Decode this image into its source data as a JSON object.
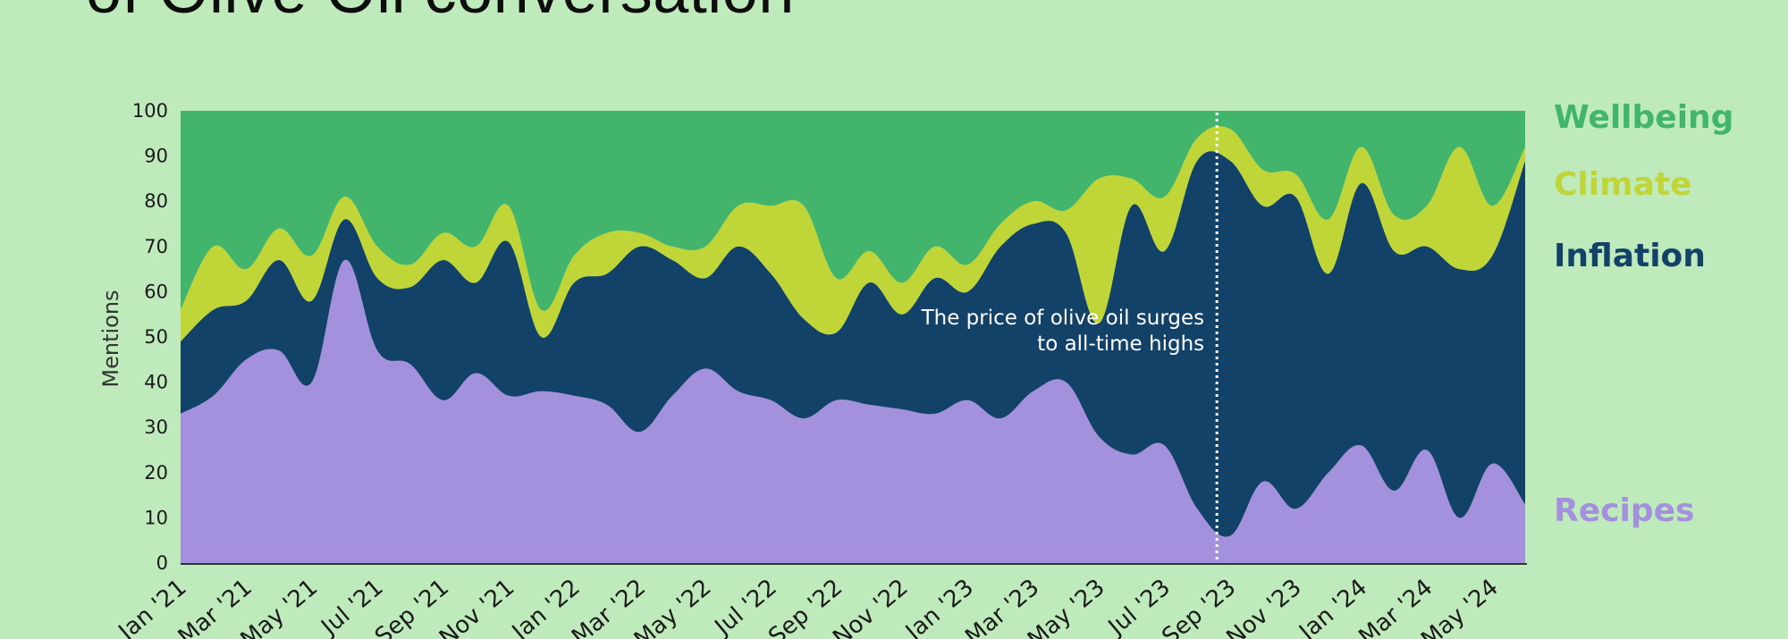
{
  "page": {
    "title": "of Olive Oil conversation"
  },
  "chart_data": {
    "type": "area",
    "stacked": true,
    "normalized_to": 100,
    "ylabel": "Mentions",
    "ylim": [
      0,
      100
    ],
    "yticks": [
      0,
      10,
      20,
      30,
      40,
      50,
      60,
      70,
      80,
      90,
      100
    ],
    "xtick_labels": [
      "Jan '21",
      "Mar '21",
      "May '21",
      "Jul '21",
      "Sep '21",
      "Nov '21",
      "Jan '22",
      "Mar '22",
      "May '22",
      "Jul '22",
      "Sep '22",
      "Nov '22",
      "Jan '23",
      "Mar '23",
      "May '23",
      "Jul '23",
      "Sep '23",
      "Nov '23",
      "Jan '24",
      "Mar '24",
      "May '24"
    ],
    "x": [
      "Jan '21",
      "Feb '21",
      "Mar '21",
      "Apr '21",
      "May '21",
      "Jun '21",
      "Jul '21",
      "Aug '21",
      "Sep '21",
      "Oct '21",
      "Nov '21",
      "Dec '21",
      "Jan '22",
      "Feb '22",
      "Mar '22",
      "Apr '22",
      "May '22",
      "Jun '22",
      "Jul '22",
      "Aug '22",
      "Sep '22",
      "Oct '22",
      "Nov '22",
      "Dec '22",
      "Jan '23",
      "Feb '23",
      "Mar '23",
      "Apr '23",
      "May '23",
      "Jun '23",
      "Jul '23",
      "Aug '23",
      "Sep '23",
      "Oct '23",
      "Nov '23",
      "Dec '23",
      "Jan '24",
      "Feb '24",
      "Mar '24",
      "Apr '24",
      "May '24",
      "Jun '24"
    ],
    "series": [
      {
        "name": "Recipes",
        "color": "#a391de",
        "values": [
          33,
          37,
          45,
          47,
          40,
          67,
          47,
          44,
          36,
          42,
          37,
          38,
          37,
          35,
          29,
          37,
          43,
          38,
          36,
          32,
          36,
          35,
          34,
          33,
          36,
          32,
          38,
          40,
          28,
          24,
          26,
          12,
          6,
          18,
          12,
          20,
          26,
          16,
          25,
          10,
          22,
          13
        ]
      },
      {
        "name": "Inflation",
        "color": "#134268",
        "values": [
          16,
          19,
          13,
          20,
          18,
          9,
          16,
          17,
          31,
          20,
          34,
          12,
          25,
          29,
          41,
          30,
          20,
          32,
          28,
          22,
          15,
          27,
          21,
          30,
          24,
          38,
          37,
          33,
          25,
          55,
          43,
          77,
          83,
          61,
          69,
          44,
          58,
          53,
          45,
          55,
          46,
          76
        ]
      },
      {
        "name": "Climate",
        "color": "#c0d638",
        "values": [
          7,
          14,
          7,
          7,
          10,
          5,
          7,
          5,
          6,
          8,
          8,
          6,
          6,
          9,
          3,
          3,
          7,
          9,
          15,
          25,
          12,
          7,
          7,
          7,
          6,
          5,
          5,
          5,
          32,
          6,
          12,
          5,
          7,
          8,
          5,
          12,
          8,
          8,
          9,
          27,
          11,
          3
        ]
      },
      {
        "name": "Wellbeing",
        "color": "#42b46c",
        "values": [
          44,
          30,
          35,
          26,
          32,
          19,
          30,
          34,
          27,
          30,
          21,
          44,
          32,
          27,
          27,
          30,
          30,
          21,
          21,
          21,
          37,
          31,
          38,
          30,
          34,
          25,
          20,
          22,
          15,
          15,
          19,
          6,
          4,
          13,
          14,
          24,
          8,
          23,
          21,
          8,
          21,
          8
        ]
      }
    ],
    "legend": "right",
    "annotations": [
      {
        "x": "Aug '23",
        "style": "dotted-vertical-line",
        "text_lines": [
          "The price of olive oil surges",
          "to all-time highs"
        ]
      }
    ]
  }
}
